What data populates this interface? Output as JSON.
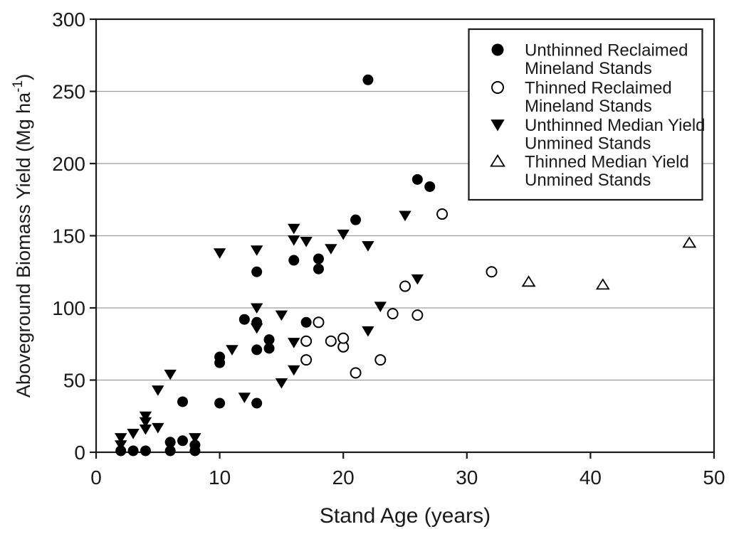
{
  "figure": {
    "background": "#ffffff",
    "frame_color": "#1a1a1a",
    "grid_color": "#9c9c9c",
    "marker_color": "#000000",
    "text_color": "#1a1a1a"
  },
  "chart_data": {
    "type": "scatter",
    "title": "",
    "xlabel": "Stand Age (years)",
    "ylabel": "Aboveground Biomass Yield (Mg ha⁻¹)",
    "ylabel_parts": {
      "main": "Aboveground Biomass Yield (Mg ha",
      "superscript": "-1",
      "close": ")"
    },
    "xlim": [
      0,
      50
    ],
    "ylim": [
      0,
      300
    ],
    "x_ticks": [
      0,
      10,
      20,
      30,
      40,
      50
    ],
    "y_ticks": [
      0,
      50,
      100,
      150,
      200,
      250,
      300
    ],
    "grid": {
      "horizontal_lines_at": [
        50,
        100,
        150,
        200,
        250
      ],
      "vertical": false
    },
    "legend": {
      "position": "top-right",
      "boxed": true,
      "entries": [
        {
          "marker": "circle-filled",
          "lines": [
            "Unthinned Reclaimed",
            "Mineland Stands"
          ]
        },
        {
          "marker": "circle-open",
          "lines": [
            "Thinned Reclaimed",
            "Mineland Stands"
          ]
        },
        {
          "marker": "triangle-down-filled",
          "lines": [
            "Unthinned Median Yield",
            "Unmined Stands"
          ]
        },
        {
          "marker": "triangle-up-open",
          "lines": [
            "Thinned Median Yield",
            "Unmined Stands"
          ]
        }
      ]
    },
    "series": [
      {
        "name": "Unthinned Reclaimed Mineland Stands",
        "marker": "circle",
        "fill": "filled",
        "color": "#000000",
        "points": [
          [
            2,
            1
          ],
          [
            3,
            1
          ],
          [
            4,
            1
          ],
          [
            6,
            1
          ],
          [
            6,
            7
          ],
          [
            7,
            8
          ],
          [
            7,
            35
          ],
          [
            8,
            1
          ],
          [
            8,
            5
          ],
          [
            10,
            34
          ],
          [
            10,
            62
          ],
          [
            10,
            66
          ],
          [
            12,
            92
          ],
          [
            13,
            34
          ],
          [
            13,
            71
          ],
          [
            13,
            90
          ],
          [
            13,
            125
          ],
          [
            14,
            72
          ],
          [
            14,
            78
          ],
          [
            16,
            133
          ],
          [
            17,
            90
          ],
          [
            18,
            127
          ],
          [
            18,
            134
          ],
          [
            21,
            161
          ],
          [
            22,
            258
          ],
          [
            26,
            189
          ],
          [
            27,
            184
          ]
        ]
      },
      {
        "name": "Thinned Reclaimed Mineland Stands",
        "marker": "circle",
        "fill": "open",
        "color": "#000000",
        "points": [
          [
            17,
            64
          ],
          [
            17,
            77
          ],
          [
            18,
            90
          ],
          [
            19,
            77
          ],
          [
            20,
            73
          ],
          [
            20,
            79
          ],
          [
            21,
            55
          ],
          [
            23,
            64
          ],
          [
            24,
            96
          ],
          [
            25,
            115
          ],
          [
            26,
            95
          ],
          [
            28,
            165
          ],
          [
            32,
            125
          ]
        ]
      },
      {
        "name": "Unthinned Median Yield Unmined Stands",
        "marker": "triangle-down",
        "fill": "filled",
        "color": "#000000",
        "points": [
          [
            2,
            5
          ],
          [
            2,
            10
          ],
          [
            3,
            13
          ],
          [
            4,
            16
          ],
          [
            4,
            21
          ],
          [
            4,
            25
          ],
          [
            5,
            17
          ],
          [
            5,
            43
          ],
          [
            6,
            54
          ],
          [
            8,
            10
          ],
          [
            10,
            138
          ],
          [
            11,
            71
          ],
          [
            12,
            38
          ],
          [
            13,
            86
          ],
          [
            13,
            100
          ],
          [
            13,
            140
          ],
          [
            15,
            48
          ],
          [
            15,
            95
          ],
          [
            16,
            57
          ],
          [
            16,
            76
          ],
          [
            16,
            147
          ],
          [
            16,
            155
          ],
          [
            17,
            146
          ],
          [
            19,
            141
          ],
          [
            20,
            151
          ],
          [
            22,
            84
          ],
          [
            22,
            143
          ],
          [
            23,
            101
          ],
          [
            25,
            164
          ],
          [
            26,
            120
          ]
        ]
      },
      {
        "name": "Thinned Median Yield Unmined Stands",
        "marker": "triangle-up",
        "fill": "open",
        "color": "#000000",
        "points": [
          [
            35,
            118
          ],
          [
            41,
            116
          ],
          [
            48,
            145
          ]
        ]
      }
    ]
  }
}
